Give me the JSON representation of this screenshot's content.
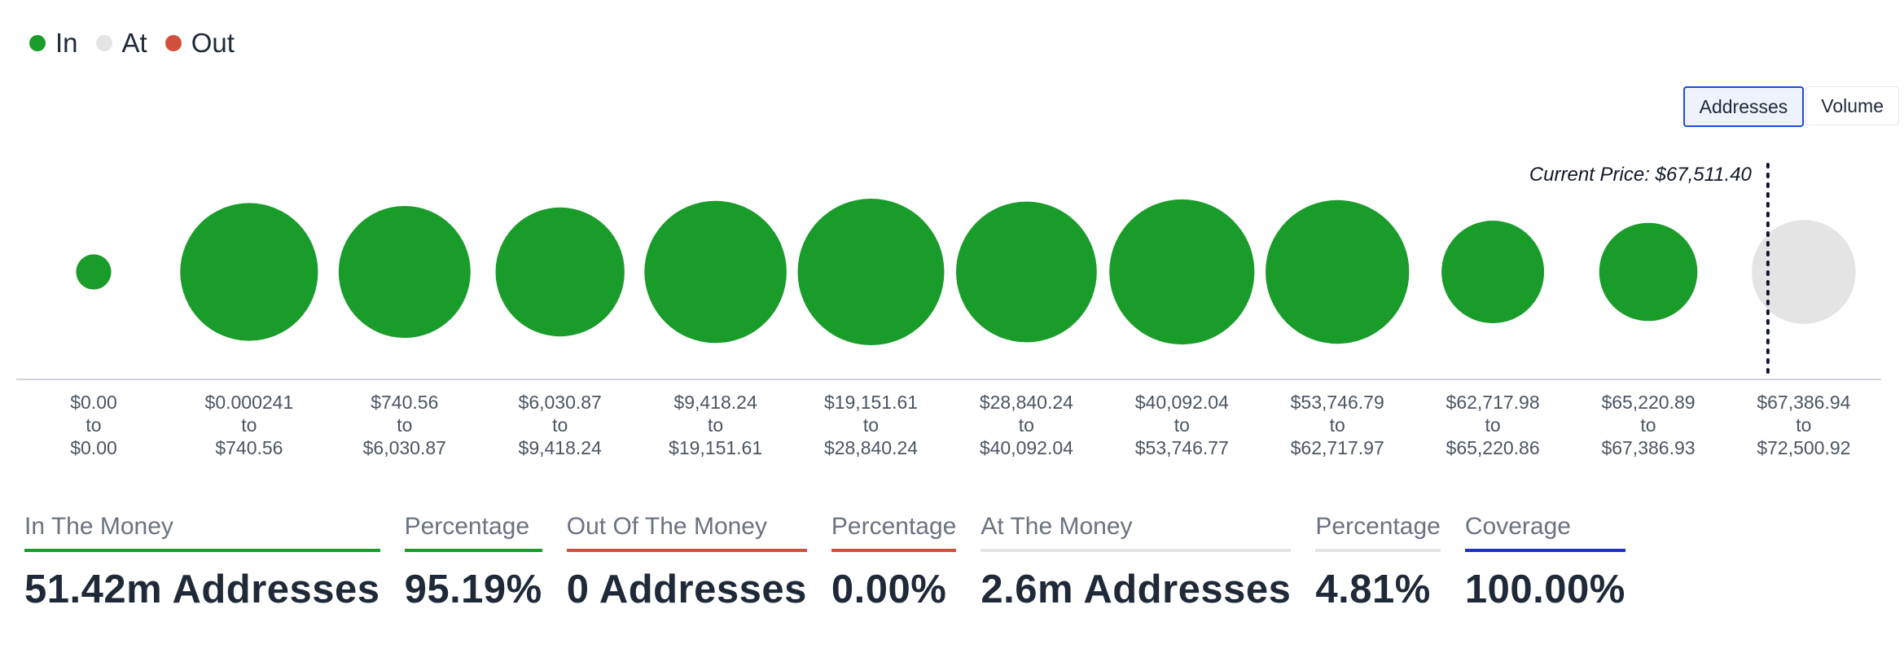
{
  "legend": [
    {
      "label": "In",
      "color": "#1a9c2a"
    },
    {
      "label": "At",
      "color": "#e4e4e4"
    },
    {
      "label": "Out",
      "color": "#d0513b"
    }
  ],
  "toggle": {
    "addresses": "Addresses",
    "volume": "Volume",
    "active": "Addresses"
  },
  "chart_data": {
    "type": "bubble",
    "title": "",
    "current_price_label": "Current Price: $67,511.40",
    "current_price": 67511.4,
    "bins": [
      {
        "from": "$0.00",
        "to": "$0.00",
        "status": "In",
        "relative_size": 0.24
      },
      {
        "from": "$0.000241",
        "to": "$740.56",
        "status": "In",
        "relative_size": 0.94
      },
      {
        "from": "$740.56",
        "to": "$6,030.87",
        "status": "In",
        "relative_size": 0.9
      },
      {
        "from": "$6,030.87",
        "to": "$9,418.24",
        "status": "In",
        "relative_size": 0.88
      },
      {
        "from": "$9,418.24",
        "to": "$19,151.61",
        "status": "In",
        "relative_size": 0.97
      },
      {
        "from": "$19,151.61",
        "to": "$28,840.24",
        "status": "In",
        "relative_size": 1.0
      },
      {
        "from": "$28,840.24",
        "to": "$40,092.04",
        "status": "In",
        "relative_size": 0.96
      },
      {
        "from": "$40,092.04",
        "to": "$53,746.77",
        "status": "In",
        "relative_size": 0.99
      },
      {
        "from": "$53,746.79",
        "to": "$62,717.97",
        "status": "In",
        "relative_size": 0.98
      },
      {
        "from": "$62,717.98",
        "to": "$65,220.86",
        "status": "In",
        "relative_size": 0.7
      },
      {
        "from": "$65,220.89",
        "to": "$67,386.93",
        "status": "In",
        "relative_size": 0.67
      },
      {
        "from": "$67,386.94",
        "to": "$72,500.92",
        "status": "At",
        "relative_size": 0.71
      }
    ],
    "to_word": "to"
  },
  "stats": [
    {
      "label": "In The Money",
      "value": "51.42m Addresses",
      "color": "#1a9c2a"
    },
    {
      "label": "Percentage",
      "value": "95.19%",
      "color": "#1a9c2a"
    },
    {
      "label": "Out Of The Money",
      "value": "0 Addresses",
      "color": "#d0513b"
    },
    {
      "label": "Percentage",
      "value": "0.00%",
      "color": "#d0513b"
    },
    {
      "label": "At The Money",
      "value": "2.6m Addresses",
      "color": "#e4e4e4"
    },
    {
      "label": "Percentage",
      "value": "4.81%",
      "color": "#e4e4e4"
    },
    {
      "label": "Coverage",
      "value": "100.00%",
      "color": "#1d31c4"
    }
  ]
}
